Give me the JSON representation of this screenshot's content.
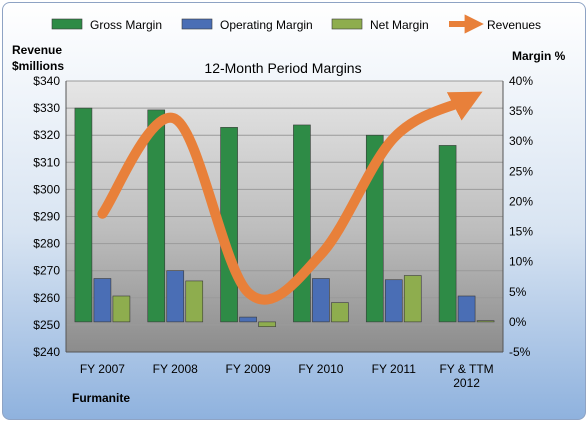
{
  "chart_data": {
    "type": "bar",
    "title": "12-Month Period Margins",
    "company": "Furmanite",
    "ylabel_left": [
      "Revenue",
      "$millions"
    ],
    "ylabel_right": "Margin %",
    "categories": [
      [
        "FY 2007"
      ],
      [
        "FY 2008"
      ],
      [
        "FY 2009"
      ],
      [
        "FY 2010"
      ],
      [
        "FY 2011"
      ],
      [
        "FY & TTM",
        "2012"
      ]
    ],
    "left_axis": {
      "min": 240,
      "max": 340,
      "step": 10,
      "prefix": "$"
    },
    "right_axis": {
      "min": -5,
      "max": 40,
      "step": 5,
      "suffix": "%"
    },
    "bar_baseline_percent": 0,
    "series": [
      {
        "name": "Gross Margin",
        "type": "bar",
        "axis": "right",
        "color": "#2e8b46",
        "values": [
          35.5,
          35.2,
          32.3,
          32.7,
          31.0,
          29.3
        ]
      },
      {
        "name": "Operating Margin",
        "type": "bar",
        "axis": "right",
        "color": "#4a6eb5",
        "values": [
          7.2,
          8.5,
          0.8,
          7.2,
          7.0,
          4.3
        ]
      },
      {
        "name": "Net Margin",
        "type": "bar",
        "axis": "right",
        "color": "#8ead4e",
        "values": [
          4.3,
          6.8,
          -0.8,
          3.2,
          7.7,
          0.2
        ]
      },
      {
        "name": "Revenues",
        "type": "line",
        "axis": "left",
        "color": "#e8803a",
        "values": [
          291,
          326,
          262,
          276,
          319,
          333
        ]
      }
    ],
    "grid": true,
    "legend_position": "top"
  }
}
